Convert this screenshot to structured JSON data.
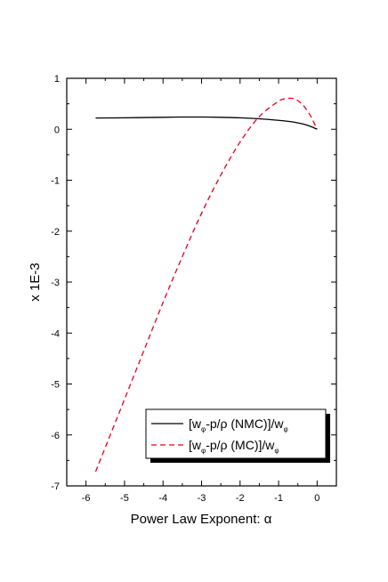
{
  "chart_data": {
    "type": "line",
    "xlabel": "Power Law Exponent: α",
    "ylabel": "x 1E-3",
    "xlim": [
      -6.5,
      0.5
    ],
    "ylim": [
      -7,
      1
    ],
    "xticks": [
      -6,
      -5,
      -4,
      -3,
      -2,
      -1,
      0
    ],
    "yticks": [
      -7,
      -6,
      -5,
      -4,
      -3,
      -2,
      -1,
      0,
      1
    ],
    "grid": false,
    "legend_position": "bottom-right",
    "series": [
      {
        "name": "[wφ-p/ρ (NMC)]/wφ",
        "name_parts": {
          "a": "[w",
          "b": "φ",
          "c": "-p/ρ (NMC)]/w",
          "d": "φ"
        },
        "color": "#000000",
        "style": "solid",
        "x": [
          -5.75,
          -5.0,
          -4.5,
          -4.0,
          -3.5,
          -3.0,
          -2.5,
          -2.0,
          -1.5,
          -1.0,
          -0.7,
          -0.5,
          -0.3,
          -0.15,
          0.0
        ],
        "y": [
          0.22,
          0.225,
          0.23,
          0.235,
          0.24,
          0.24,
          0.235,
          0.225,
          0.205,
          0.175,
          0.15,
          0.125,
          0.09,
          0.05,
          0.0
        ]
      },
      {
        "name": "[wφ-p/ρ (MC)]/wφ",
        "name_parts": {
          "a": "[w",
          "b": "φ",
          "c": "-p/ρ (MC)]/w",
          "d": "φ"
        },
        "color": "#e8001c",
        "style": "dashed",
        "x": [
          -5.75,
          -5.0,
          -4.5,
          -4.0,
          -3.5,
          -3.0,
          -2.5,
          -2.0,
          -1.5,
          -1.0,
          -0.8,
          -0.6,
          -0.4,
          -0.2,
          0.0
        ],
        "y": [
          -6.72,
          -5.3,
          -4.35,
          -3.4,
          -2.5,
          -1.65,
          -0.9,
          -0.25,
          0.25,
          0.55,
          0.6,
          0.6,
          0.5,
          0.3,
          0.0
        ]
      }
    ]
  }
}
